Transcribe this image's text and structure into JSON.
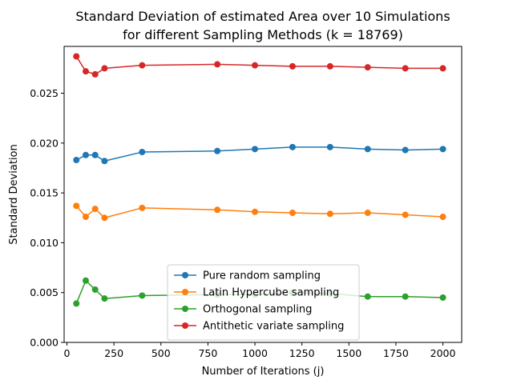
{
  "chart_data": {
    "type": "line",
    "title": "Standard Deviation of estimated Area over 10 Simulations",
    "subtitle": "for different Sampling Methods (k = 18769)",
    "xlabel": "Number of Iterations (j)",
    "ylabel": "Standard Deviation",
    "xlim": [
      -15,
      2100
    ],
    "ylim": [
      0,
      0.0297
    ],
    "xticks": [
      0,
      250,
      500,
      750,
      1000,
      1250,
      1500,
      1750,
      2000
    ],
    "xtick_labels": [
      "0",
      "250",
      "500",
      "750",
      "1000",
      "1250",
      "1500",
      "1750",
      "2000"
    ],
    "yticks": [
      0,
      0.005,
      0.01,
      0.015,
      0.02,
      0.025
    ],
    "ytick_labels": [
      "0.000",
      "0.005",
      "0.010",
      "0.015",
      "0.020",
      "0.025"
    ],
    "grid": false,
    "legend_position": "lower-center",
    "x": [
      50,
      100,
      150,
      200,
      400,
      800,
      1000,
      1200,
      1400,
      1600,
      1800,
      2000
    ],
    "series": [
      {
        "name": "Pure random sampling",
        "color": "#1f77b4",
        "values": [
          0.0183,
          0.0188,
          0.0188,
          0.0182,
          0.0191,
          0.0192,
          0.0194,
          0.0196,
          0.0196,
          0.0194,
          0.0193,
          0.0194
        ]
      },
      {
        "name": "Latin Hypercube sampling",
        "color": "#ff7f0e",
        "values": [
          0.0137,
          0.0126,
          0.0134,
          0.0125,
          0.0135,
          0.0133,
          0.0131,
          0.013,
          0.0129,
          0.013,
          0.0128,
          0.0126
        ]
      },
      {
        "name": "Orthogonal sampling",
        "color": "#2ca02c",
        "values": [
          0.0039,
          0.0062,
          0.0053,
          0.0044,
          0.0047,
          0.0048,
          0.0048,
          0.005,
          0.0049,
          0.0046,
          0.0046,
          0.0045
        ]
      },
      {
        "name": "Antithetic variate sampling",
        "color": "#d62728",
        "values": [
          0.0287,
          0.0272,
          0.0269,
          0.0275,
          0.0278,
          0.0279,
          0.0278,
          0.0277,
          0.0277,
          0.0276,
          0.0275,
          0.0275
        ]
      }
    ]
  }
}
